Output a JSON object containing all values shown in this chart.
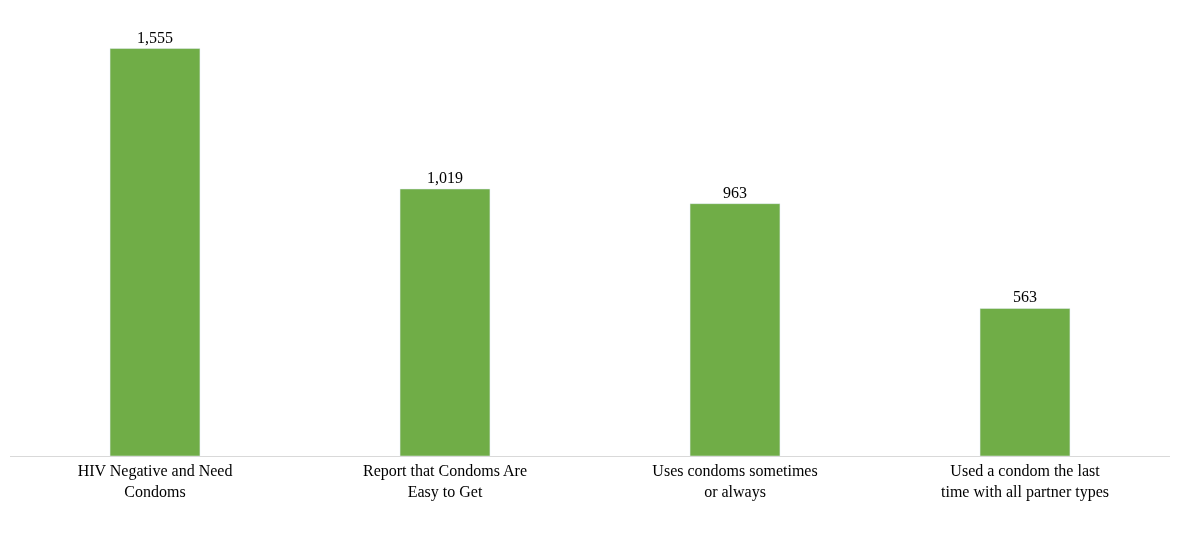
{
  "chart_data": {
    "type": "bar",
    "categories": [
      "HIV Negative and Need Condoms",
      "Report that Condoms Are Easy to Get",
      "Uses condoms sometimes or always",
      "Used a condom the last time with all partner types"
    ],
    "values": [
      1555,
      1019,
      963,
      563
    ],
    "color": "#70ad47",
    "value_labels": [
      "1,555",
      "1,019",
      "963",
      "563"
    ]
  }
}
